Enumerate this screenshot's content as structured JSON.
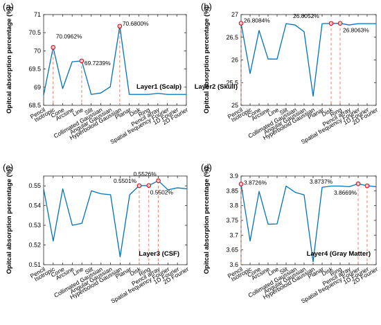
{
  "chart_data": [
    {
      "type": "line",
      "panel_label": "(a)",
      "ylabel": "Opitcal absorption percentage (%)",
      "layer_label": "Layer1 (Scalp)",
      "categories": [
        "Pencil",
        "Isotropic",
        "Cone",
        "Arcsine",
        "Line",
        "Slit",
        "Collimated Gaussian",
        "Angular Gaussian",
        "Hyperboloid Gaussian",
        "Planar",
        "Disk",
        "Ring",
        "Pencil array",
        "Spatial frequency Fourier",
        "1D Fourier",
        "2D Fourier"
      ],
      "values": [
        68.78,
        70.0962,
        68.96,
        69.7,
        69.7239,
        68.8,
        68.84,
        69.01,
        70.68,
        68.8,
        68.8,
        68.8,
        68.83,
        68.8,
        68.8,
        68.8
      ],
      "ylim": [
        68.5,
        71
      ],
      "yticks": [
        "68.5",
        "69",
        "69.5",
        "70",
        "70.5",
        "71"
      ],
      "color": "#0072BD",
      "marker_color": "#D0021B",
      "highlights": [
        {
          "index": 1,
          "label": "70.0962%"
        },
        {
          "index": 4,
          "label": "69.7239%"
        },
        {
          "index": 8,
          "label": "70.6800%"
        }
      ]
    },
    {
      "type": "line",
      "panel_label": "(b)",
      "ylabel": "Opitcal absorption percentage (%)",
      "layer_label": "Layer2 (Skull)",
      "categories": [
        "Pencil",
        "Isotropic",
        "Cone",
        "Arcsine",
        "Line",
        "Slit",
        "Collimated Gaussian",
        "Angular Gaussian",
        "Hyperboloid Gaussian",
        "Planar",
        "Disk",
        "Ring",
        "Pencil array",
        "Spatial frequency Fourier",
        "1D Fourier",
        "2D Fourier"
      ],
      "values": [
        26.8084,
        25.7,
        26.65,
        26.02,
        26.02,
        26.8,
        26.77,
        26.62,
        25.2,
        26.8,
        26.8052,
        26.8063,
        26.77,
        26.8,
        26.8,
        26.8
      ],
      "ylim": [
        25,
        27
      ],
      "yticks": [
        "25",
        "25.5",
        "26",
        "26.5",
        "27"
      ],
      "color": "#0072BD",
      "marker_color": "#D0021B",
      "highlights": [
        {
          "index": 0,
          "label": "26.8084%"
        },
        {
          "index": 10,
          "label": "26.8052%"
        },
        {
          "index": 11,
          "label": "26.8063%"
        }
      ]
    },
    {
      "type": "line",
      "panel_label": "(c)",
      "ylabel": "Opitcal absorption percentage (%)",
      "layer_label": "Layer3 (CSF)",
      "categories": [
        "Pencil",
        "Isotropic",
        "Cone",
        "Arcsine",
        "Line",
        "Slit",
        "Collimated Gaussian",
        "Angular Gaussian",
        "Hyperboloid Gaussian",
        "Planar",
        "Disk",
        "Ring",
        "Pencil array",
        "Spatial frequency Fourier",
        "1D Fourier",
        "2D Fourier"
      ],
      "values": [
        0.5485,
        0.522,
        0.5485,
        0.53,
        0.531,
        0.5475,
        0.546,
        0.5455,
        0.514,
        0.5455,
        0.5501,
        0.5502,
        0.5526,
        0.548,
        0.549,
        0.5485
      ],
      "ylim": [
        0.51,
        0.555
      ],
      "yticks": [
        "0.51",
        "0.52",
        "0.53",
        "0.54",
        "0.55"
      ],
      "color": "#0072BD",
      "marker_color": "#D0021B",
      "highlights": [
        {
          "index": 10,
          "label": "0.5501%"
        },
        {
          "index": 11,
          "label": "0.5502%"
        },
        {
          "index": 12,
          "label": "0.5526%"
        }
      ]
    },
    {
      "type": "line",
      "panel_label": "(d)",
      "ylabel": "Opitcal absorption percentage (%)",
      "layer_label": "Layer4 (Gray Matter)",
      "categories": [
        "Pencil",
        "Isotropic",
        "Cone",
        "Arcsine",
        "Line",
        "Slit",
        "Collimated Gaussian",
        "Angular Gaussian",
        "Hyperboloid Gaussian",
        "Planar",
        "Disk",
        "Ring",
        "Pencil array",
        "Spatial frequency Fourier",
        "1D Fourier",
        "2D Fourier"
      ],
      "values": [
        3.8726,
        3.68,
        3.848,
        3.737,
        3.738,
        3.866,
        3.845,
        3.836,
        3.61,
        3.862,
        3.866,
        3.866,
        3.864,
        3.8737,
        3.8669,
        3.864
      ],
      "ylim": [
        3.6,
        3.9
      ],
      "yticks": [
        "3.6",
        "3.65",
        "3.7",
        "3.75",
        "3.8",
        "3.85",
        "3.9"
      ],
      "color": "#0072BD",
      "marker_color": "#D0021B",
      "highlights": [
        {
          "index": 0,
          "label": "3.8726%"
        },
        {
          "index": 13,
          "label": "3.8737%"
        },
        {
          "index": 14,
          "label": "3.8669%"
        }
      ]
    }
  ]
}
